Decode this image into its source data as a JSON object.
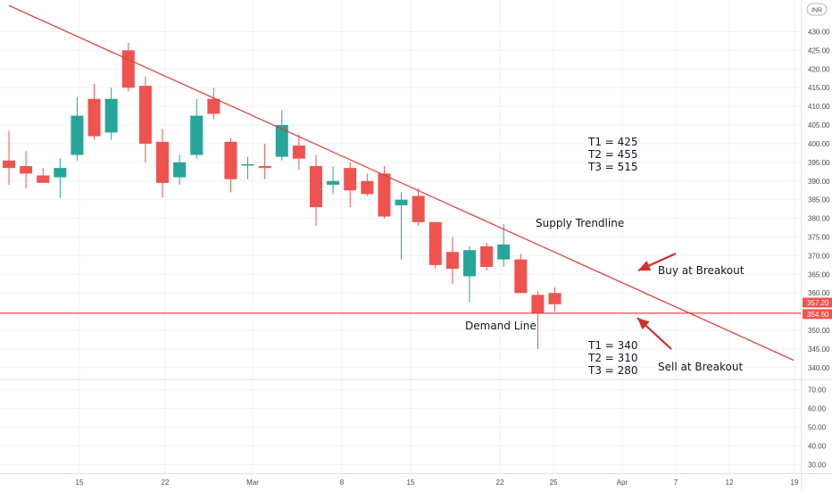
{
  "chart_data": {
    "type": "candlestick",
    "currency": "INR",
    "x_tick_labels": [
      "15",
      "22",
      "Mar",
      "8",
      "15",
      "22",
      "25",
      "Apr",
      "7",
      "12",
      "19"
    ],
    "price_ticks": [
      "430.00",
      "425.00",
      "420.00",
      "415.00",
      "410.00",
      "405.00",
      "400.00",
      "395.00",
      "390.00",
      "385.00",
      "380.00",
      "375.00",
      "370.00",
      "365.00",
      "360.00",
      "350.00",
      "345.00",
      "340.00"
    ],
    "volume_ticks": [
      "70.00",
      "60.00",
      "50.00",
      "40.00",
      "30.00"
    ],
    "price_ylim": [
      338,
      432
    ],
    "price_badges": [
      {
        "label": "357.20",
        "value": 357.2,
        "color": "#f05350"
      },
      {
        "label": "354.60",
        "value": 354.6,
        "color": "#f05350"
      }
    ],
    "colors": {
      "up": "#26a69a",
      "down": "#ef5350",
      "line": "#e53935",
      "text": "#131722"
    },
    "candles": [
      {
        "o": 395.5,
        "h": 403.5,
        "l": 389,
        "c": 393.5
      },
      {
        "o": 394,
        "h": 398,
        "l": 388,
        "c": 392
      },
      {
        "o": 391.5,
        "h": 393.5,
        "l": 389.5,
        "c": 389.5
      },
      {
        "o": 391,
        "h": 396,
        "l": 385.5,
        "c": 393.5
      },
      {
        "o": 397,
        "h": 412.5,
        "l": 395.5,
        "c": 407.5
      },
      {
        "o": 412,
        "h": 416,
        "l": 401,
        "c": 402
      },
      {
        "o": 403,
        "h": 415,
        "l": 401,
        "c": 412
      },
      {
        "o": 425,
        "h": 427,
        "l": 414,
        "c": 415
      },
      {
        "o": 415.5,
        "h": 418,
        "l": 395,
        "c": 400
      },
      {
        "o": 400.5,
        "h": 404,
        "l": 385.5,
        "c": 389.5
      },
      {
        "o": 391,
        "h": 397,
        "l": 389,
        "c": 395
      },
      {
        "o": 397,
        "h": 412,
        "l": 396,
        "c": 407.5
      },
      {
        "o": 412,
        "h": 415,
        "l": 406.5,
        "c": 408
      },
      {
        "o": 400.5,
        "h": 401.5,
        "l": 387,
        "c": 390.5
      },
      {
        "o": 394.5,
        "h": 396.5,
        "l": 390.5,
        "c": 394.5
      },
      {
        "o": 394,
        "h": 400,
        "l": 390.5,
        "c": 393.5
      },
      {
        "o": 396.5,
        "h": 409,
        "l": 395.5,
        "c": 405
      },
      {
        "o": 399.5,
        "h": 402.5,
        "l": 393,
        "c": 396
      },
      {
        "o": 394,
        "h": 397,
        "l": 378,
        "c": 383
      },
      {
        "o": 389,
        "h": 394,
        "l": 386.5,
        "c": 390
      },
      {
        "o": 393.5,
        "h": 395,
        "l": 383,
        "c": 387.5
      },
      {
        "o": 390,
        "h": 392,
        "l": 386,
        "c": 386.5
      },
      {
        "o": 392,
        "h": 394,
        "l": 380,
        "c": 380.5
      },
      {
        "o": 383.5,
        "h": 387,
        "l": 369,
        "c": 385
      },
      {
        "o": 386,
        "h": 388,
        "l": 378,
        "c": 379
      },
      {
        "o": 379,
        "h": 379,
        "l": 366.5,
        "c": 367.5
      },
      {
        "o": 371,
        "h": 375,
        "l": 362.5,
        "c": 366.5
      },
      {
        "o": 364.5,
        "h": 372.5,
        "l": 357.5,
        "c": 371.5
      },
      {
        "o": 372.5,
        "h": 373.5,
        "l": 366,
        "c": 367
      },
      {
        "o": 369,
        "h": 378.5,
        "l": 367,
        "c": 373
      },
      {
        "o": 369,
        "h": 370.5,
        "l": 360,
        "c": 360
      },
      {
        "o": 359.5,
        "h": 360.5,
        "l": 345,
        "c": 354.5
      },
      {
        "o": 360,
        "h": 361.5,
        "l": 355,
        "c": 357
      }
    ],
    "annotations": {
      "supply_trendline": "Supply Trendline",
      "demand_line": "Demand Line",
      "buy": "Buy at Breakout",
      "sell": "Sell at Breakout",
      "upper_targets": [
        "T1 = 425",
        "T2 = 455",
        "T3 = 515"
      ],
      "lower_targets": [
        "T1 = 340",
        "T2 = 310",
        "T3 = 280"
      ]
    },
    "demand_line_value": 354.6,
    "supply_trendline_points": [
      {
        "candle": 0,
        "value": 437
      },
      {
        "candle": 46,
        "value": 342
      }
    ]
  }
}
